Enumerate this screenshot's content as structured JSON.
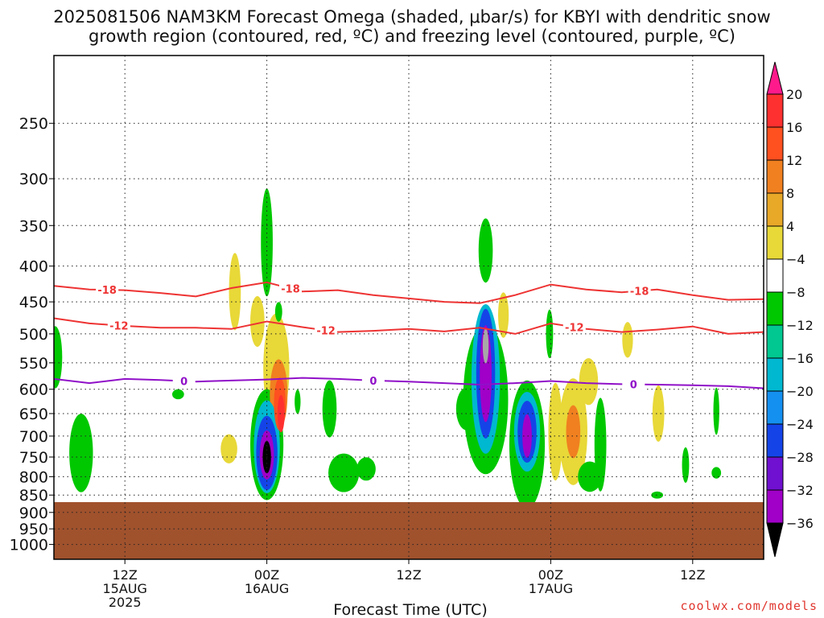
{
  "title": {
    "line1": "2025081506 NAM3KM Forecast Omega (shaded, μbar/s) for KBYI with dendritic snow",
    "line2": "growth region (contoured, red, ºC) and freezing level (contoured, purple, ºC)"
  },
  "credit": "coolwx.com/models",
  "chart_data": {
    "type": "heatmap",
    "title": "2025081506 NAM3KM Forecast Omega (shaded, μbar/s) for KBYI with dendritic snow growth region (contoured, red, ºC) and freezing level (contoured, purple, ºC)",
    "xlabel": "Forecast Time (UTC)",
    "ylabel": "",
    "x_ticks": [
      {
        "hour": 6,
        "label": "12Z",
        "sub1": "15AUG",
        "sub2": "2025"
      },
      {
        "hour": 18,
        "label": "00Z",
        "sub1": "16AUG",
        "sub2": ""
      },
      {
        "hour": 30,
        "label": "12Z",
        "sub1": "",
        "sub2": ""
      },
      {
        "hour": 42,
        "label": "00Z",
        "sub1": "17AUG",
        "sub2": ""
      },
      {
        "hour": 54,
        "label": "12Z",
        "sub1": "",
        "sub2": ""
      }
    ],
    "xlim_hours": [
      0,
      60
    ],
    "y_ticks": [
      250,
      300,
      350,
      400,
      450,
      500,
      550,
      600,
      650,
      700,
      750,
      800,
      850,
      900,
      950,
      1000
    ],
    "ylim": [
      200,
      1050
    ],
    "y_scale": "log-pressure",
    "grid": true,
    "terrain_pressure": 870,
    "colorbar": {
      "labels": [
        "20",
        "16",
        "12",
        "8",
        "4",
        "−4",
        "−8",
        "−12",
        "−16",
        "−20",
        "−24",
        "−28",
        "−32",
        "−36"
      ],
      "colors": [
        "#ff1a8c",
        "#ff3030",
        "#ff5020",
        "#f08020",
        "#e8a828",
        "#e8d838",
        "#ffffff",
        "#00c800",
        "#00c890",
        "#00b8d0",
        "#1490f0",
        "#1444e8",
        "#7010d0",
        "#a000c8",
        "#a8a8a8",
        "#000000"
      ]
    },
    "contours": [
      {
        "name": "-18",
        "color": "#ee3333",
        "hours": [
          0,
          3,
          6,
          9,
          12,
          15,
          18,
          21,
          24,
          27,
          30,
          33,
          36,
          39,
          42,
          45,
          48,
          51,
          54,
          57,
          60
        ],
        "pressure": [
          427,
          432,
          433,
          437,
          442,
          430,
          422,
          435,
          433,
          440,
          445,
          450,
          452,
          440,
          425,
          432,
          436,
          432,
          440,
          447,
          446
        ],
        "labels_at": [
          4.5,
          20,
          49.5
        ]
      },
      {
        "name": "-12",
        "color": "#ee3333",
        "hours": [
          0,
          3,
          6,
          9,
          12,
          15,
          18,
          21,
          24,
          27,
          30,
          33,
          36,
          39,
          42,
          45,
          48,
          51,
          54,
          57,
          60
        ],
        "pressure": [
          475,
          483,
          487,
          490,
          490,
          492,
          480,
          489,
          497,
          495,
          492,
          496,
          490,
          500,
          483,
          492,
          497,
          493,
          488,
          500,
          497
        ],
        "labels_at": [
          5.5,
          23,
          44
        ]
      },
      {
        "name": "0",
        "color": "#9010c8",
        "hours": [
          0,
          3,
          6,
          9,
          12,
          15,
          18,
          21,
          24,
          27,
          30,
          33,
          36,
          39,
          42,
          45,
          48,
          51,
          54,
          57,
          60
        ],
        "pressure": [
          580,
          588,
          580,
          582,
          585,
          583,
          581,
          578,
          580,
          583,
          585,
          588,
          591,
          588,
          584,
          588,
          590,
          591,
          592,
          594,
          598
        ],
        "labels_at": [
          11,
          27,
          49
        ]
      }
    ],
    "omega_blobs": [
      {
        "h": 0.1,
        "p": 540,
        "rh": 0.6,
        "rp": 55,
        "v": -6
      },
      {
        "h": 2.3,
        "p": 740,
        "rh": 1.0,
        "rp": 95,
        "v": -6
      },
      {
        "h": 10.5,
        "p": 610,
        "rh": 0.5,
        "rp": 10,
        "v": -6
      },
      {
        "h": 14.8,
        "p": 730,
        "rh": 0.7,
        "rp": 35,
        "v": 5
      },
      {
        "h": 15.3,
        "p": 435,
        "rh": 0.5,
        "rp": 55,
        "v": 5
      },
      {
        "h": 18.0,
        "p": 720,
        "rh": 1.4,
        "rp": 130,
        "v": -6
      },
      {
        "h": 18.0,
        "p": 725,
        "rh": 1.1,
        "rp": 110,
        "v": -13
      },
      {
        "h": 18.0,
        "p": 740,
        "rh": 0.9,
        "rp": 90,
        "v": -22
      },
      {
        "h": 18.0,
        "p": 745,
        "rh": 0.6,
        "rp": 60,
        "v": -30
      },
      {
        "h": 18.0,
        "p": 750,
        "rh": 0.35,
        "rp": 40,
        "v": -38
      },
      {
        "h": 18.0,
        "p": 370,
        "rh": 0.5,
        "rp": 65,
        "v": -6
      },
      {
        "h": 17.2,
        "p": 480,
        "rh": 0.6,
        "rp": 40,
        "v": 5
      },
      {
        "h": 18.8,
        "p": 560,
        "rh": 1.1,
        "rp": 100,
        "v": 5
      },
      {
        "h": 19.0,
        "p": 610,
        "rh": 0.75,
        "rp": 70,
        "v": 10
      },
      {
        "h": 19.1,
        "p": 630,
        "rh": 0.5,
        "rp": 55,
        "v": 14
      },
      {
        "h": 19.2,
        "p": 650,
        "rh": 0.3,
        "rp": 40,
        "v": 19
      },
      {
        "h": 19.0,
        "p": 465,
        "rh": 0.3,
        "rp": 15,
        "v": -6
      },
      {
        "h": 20.6,
        "p": 625,
        "rh": 0.25,
        "rp": 25,
        "v": -6
      },
      {
        "h": 23.3,
        "p": 640,
        "rh": 0.6,
        "rp": 60,
        "v": -6
      },
      {
        "h": 24.5,
        "p": 790,
        "rh": 1.3,
        "rp": 50,
        "v": -6
      },
      {
        "h": 26.4,
        "p": 780,
        "rh": 0.8,
        "rp": 30,
        "v": -6
      },
      {
        "h": 34.9,
        "p": 640,
        "rh": 0.9,
        "rp": 45,
        "v": -6
      },
      {
        "h": 36.5,
        "p": 620,
        "rh": 1.9,
        "rp": 150,
        "v": -6
      },
      {
        "h": 36.5,
        "p": 380,
        "rh": 0.6,
        "rp": 40,
        "v": -6
      },
      {
        "h": 36.5,
        "p": 580,
        "rh": 1.2,
        "rp": 140,
        "v": -13
      },
      {
        "h": 36.5,
        "p": 570,
        "rh": 0.8,
        "rp": 120,
        "v": -20
      },
      {
        "h": 36.5,
        "p": 570,
        "rh": 0.5,
        "rp": 90,
        "v": -28
      },
      {
        "h": 36.5,
        "p": 520,
        "rh": 0.25,
        "rp": 30,
        "v": -34
      },
      {
        "h": 38.0,
        "p": 470,
        "rh": 0.45,
        "rp": 35,
        "v": 5
      },
      {
        "h": 40.0,
        "p": 720,
        "rh": 1.5,
        "rp": 150,
        "v": -6
      },
      {
        "h": 40.0,
        "p": 690,
        "rh": 1.1,
        "rp": 90,
        "v": -12
      },
      {
        "h": 40.0,
        "p": 690,
        "rh": 0.8,
        "rp": 70,
        "v": -20
      },
      {
        "h": 40.0,
        "p": 700,
        "rh": 0.4,
        "rp": 50,
        "v": -28
      },
      {
        "h": 41.9,
        "p": 500,
        "rh": 0.3,
        "rp": 40,
        "v": -6
      },
      {
        "h": 42.4,
        "p": 690,
        "rh": 0.6,
        "rp": 110,
        "v": 5
      },
      {
        "h": 43.9,
        "p": 690,
        "rh": 1.2,
        "rp": 120,
        "v": 5
      },
      {
        "h": 43.9,
        "p": 690,
        "rh": 0.6,
        "rp": 60,
        "v": 10
      },
      {
        "h": 45.2,
        "p": 585,
        "rh": 0.8,
        "rp": 45,
        "v": 5
      },
      {
        "h": 45.3,
        "p": 800,
        "rh": 1.0,
        "rp": 40,
        "v": -6
      },
      {
        "h": 46.2,
        "p": 720,
        "rh": 0.5,
        "rp": 110,
        "v": -6
      },
      {
        "h": 48.5,
        "p": 510,
        "rh": 0.45,
        "rp": 30,
        "v": 5
      },
      {
        "h": 51.1,
        "p": 650,
        "rh": 0.5,
        "rp": 60,
        "v": 5
      },
      {
        "h": 51.0,
        "p": 850,
        "rh": 0.5,
        "rp": 10,
        "v": -6
      },
      {
        "h": 53.4,
        "p": 770,
        "rh": 0.3,
        "rp": 45,
        "v": -6
      },
      {
        "h": 56.0,
        "p": 790,
        "rh": 0.4,
        "rp": 15,
        "v": -6
      },
      {
        "h": 56.0,
        "p": 645,
        "rh": 0.25,
        "rp": 50,
        "v": -6
      }
    ]
  }
}
